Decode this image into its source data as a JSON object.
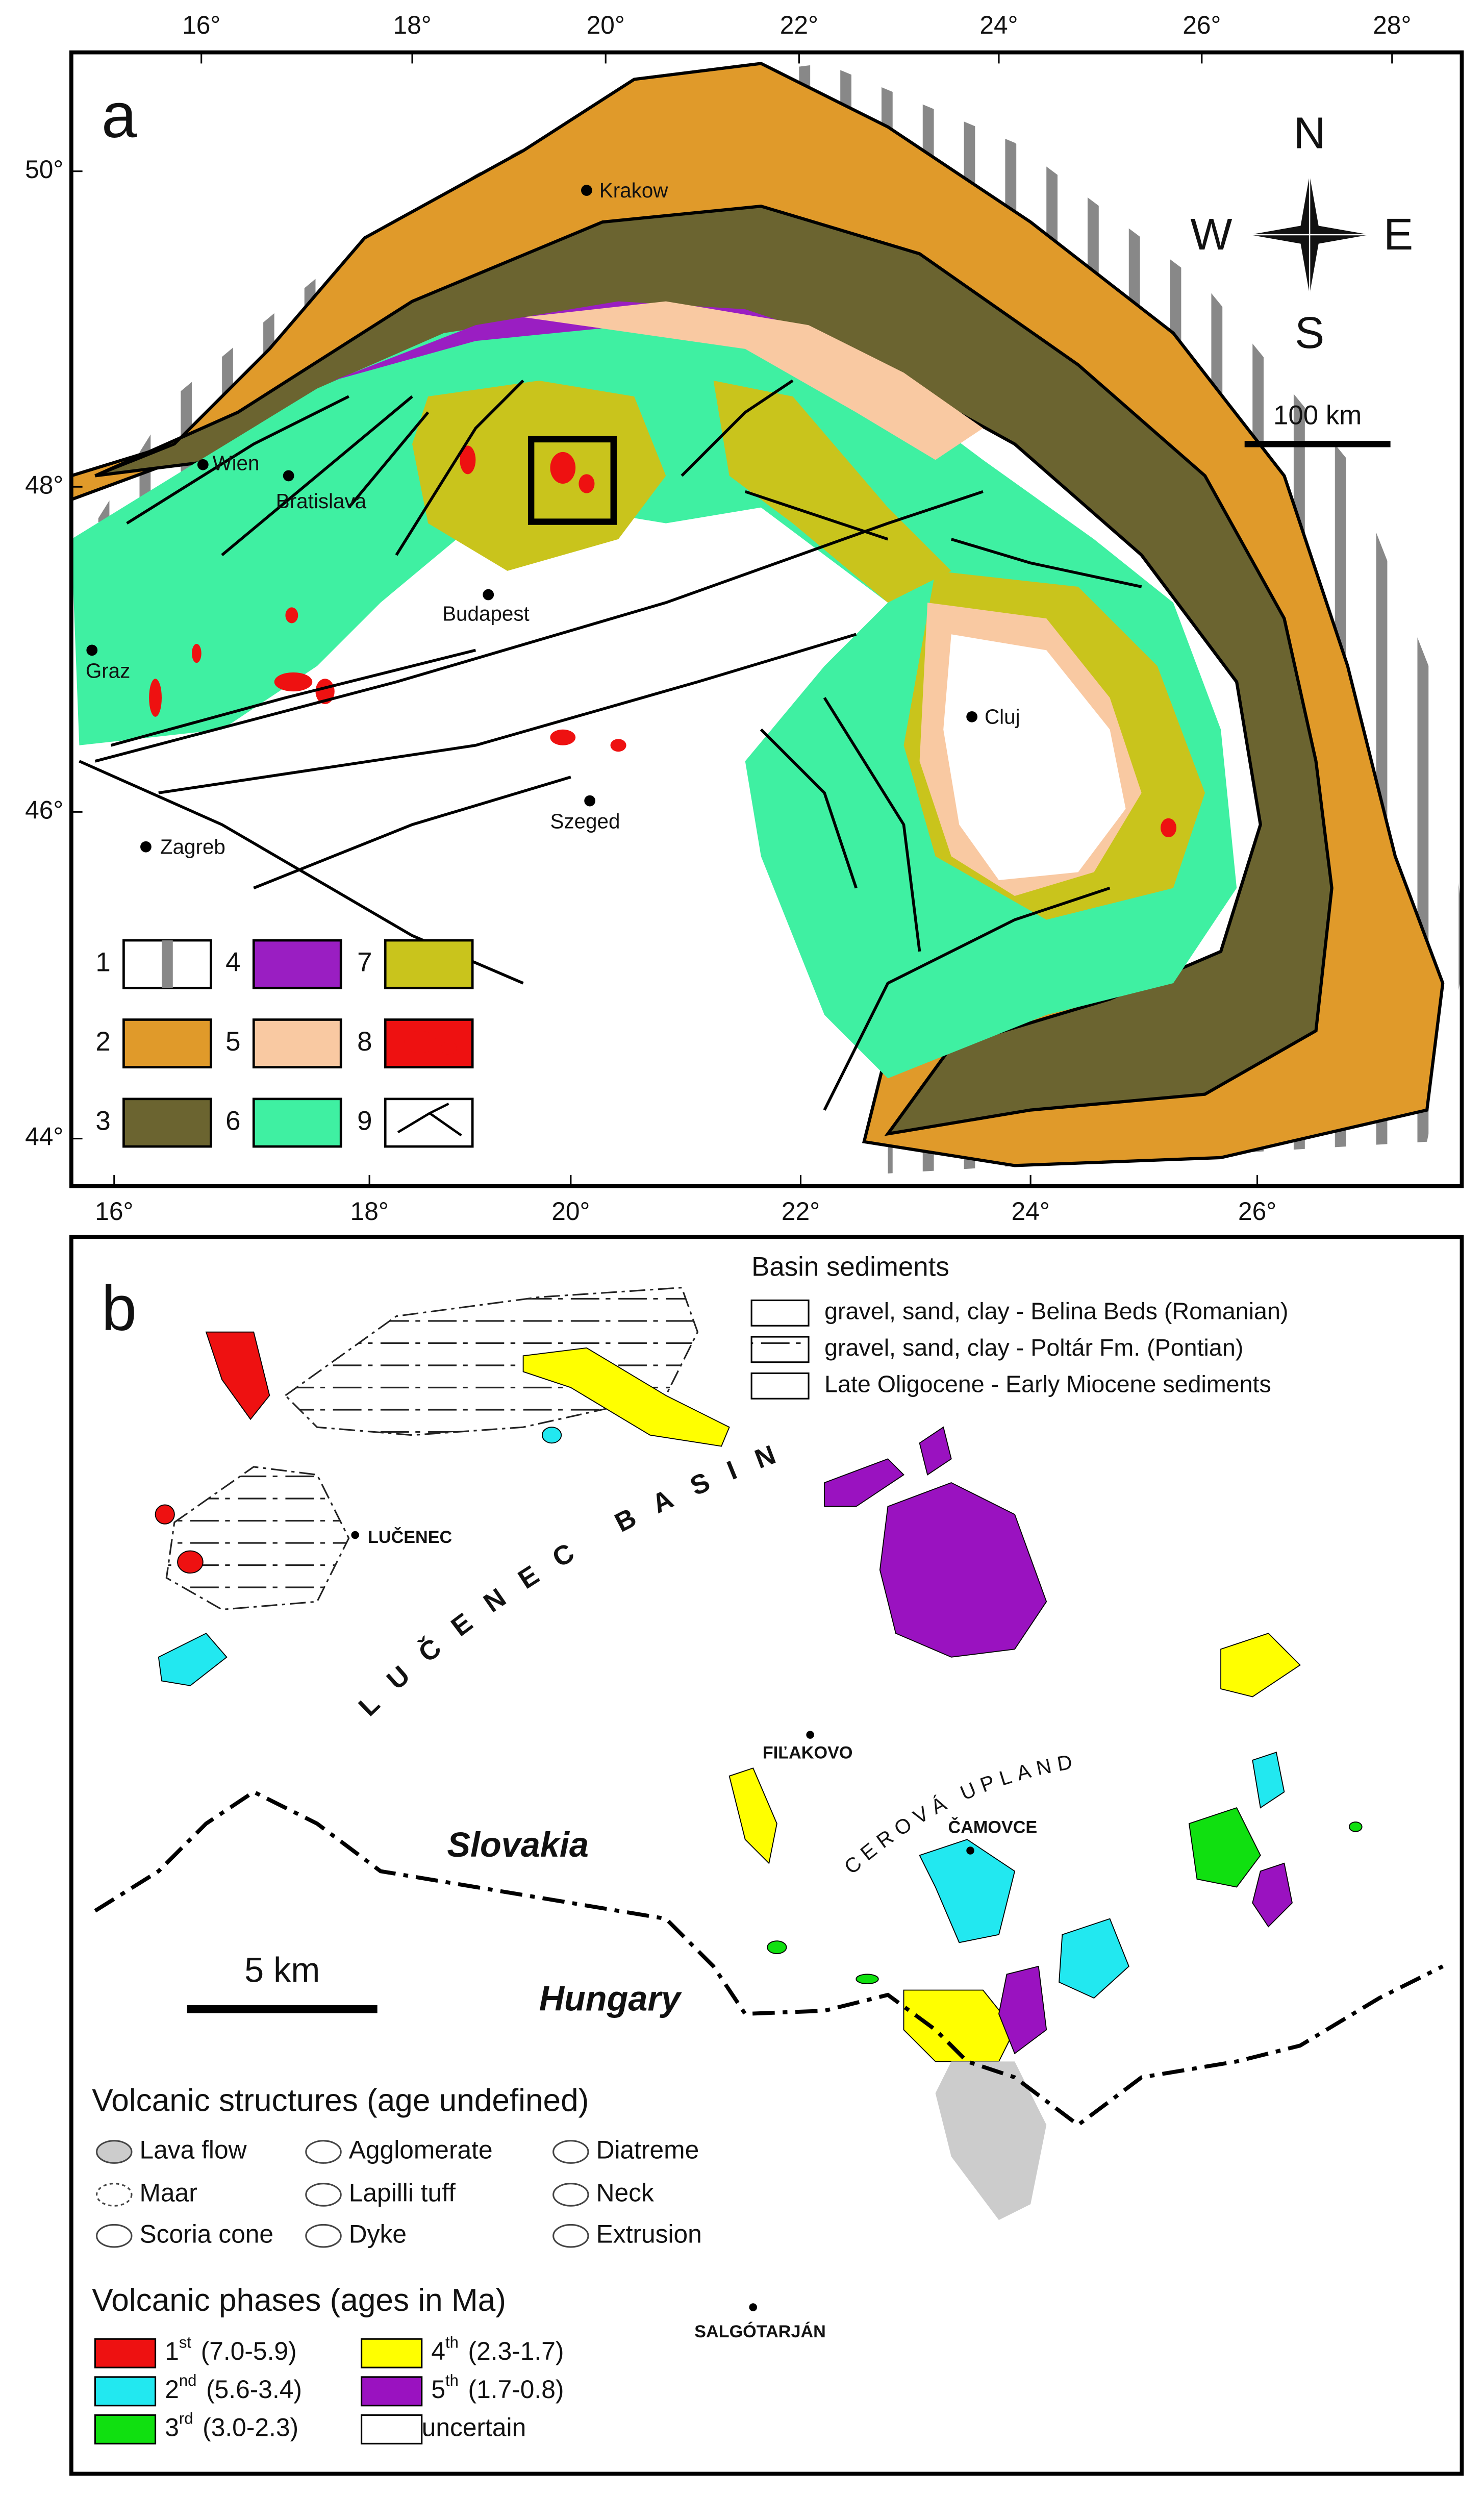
{
  "panel_a": {
    "label": "a",
    "top_ticks": [
      "16°",
      "18°",
      "20°",
      "22°",
      "24°",
      "26°",
      "28°"
    ],
    "bottom_ticks": [
      "16°",
      "18°",
      "20°",
      "22°",
      "24°",
      "26°"
    ],
    "left_ticks": [
      "50°",
      "48°",
      "46°",
      "44°"
    ],
    "compass": {
      "n": "N",
      "s": "S",
      "w": "W",
      "e": "E"
    },
    "scale_bar": "100 km",
    "cities": [
      "Krakow",
      "Wien",
      "Bratislava",
      "Budapest",
      "Graz",
      "Cluj",
      "Szeged",
      "Zagreb"
    ],
    "legend": [
      {
        "number": "1",
        "color": "#ffffff"
      },
      {
        "number": "2",
        "color": "#e09a2a"
      },
      {
        "number": "3",
        "color": "#6b6430"
      },
      {
        "number": "4",
        "color": "#9a1ec2"
      },
      {
        "number": "5",
        "color": "#f9c9a2"
      },
      {
        "number": "6",
        "color": "#3ff0a2"
      },
      {
        "number": "7",
        "color": "#c9c41c"
      },
      {
        "number": "8",
        "color": "#ee1111"
      },
      {
        "number": "9",
        "color": "#ffffff"
      }
    ]
  },
  "panel_b": {
    "label": "b",
    "sediments_title": "Basin sediments",
    "sediments": [
      "gravel, sand, clay - Belina Beds (Romanian)",
      "gravel, sand, clay - Poltár Fm. (Pontian)",
      "Late Oligocene - Early Miocene sediments"
    ],
    "basin_label": "LUČENEC BASIN",
    "upland_label": "CEROVÁ UPLAND",
    "countries": [
      "Slovakia",
      "Hungary"
    ],
    "towns": [
      "LUČENEC",
      "FIĽAKOVO",
      "ČAMOVCE",
      "SALGÓTARJÁN"
    ],
    "scale_bar": "5 km",
    "structures_title": "Volcanic structures (age undefined)",
    "structures": [
      "Lava flow",
      "Agglomerate",
      "Diatreme",
      "Maar",
      "Lapilli tuff",
      "Neck",
      "Scoria cone",
      "Dyke",
      "Extrusion"
    ],
    "phases_title": "Volcanic phases (ages in Ma)",
    "phases": [
      {
        "ordinal": "1",
        "suffix": "st",
        "range": "(7.0-5.9)",
        "color": "#ee1111"
      },
      {
        "ordinal": "4",
        "suffix": "th",
        "range": "(2.3-1.7)",
        "color": "#ffff00"
      },
      {
        "ordinal": "2",
        "suffix": "nd",
        "range": "(5.6-3.4)",
        "color": "#22e8f0"
      },
      {
        "ordinal": "5",
        "suffix": "th",
        "range": "(1.7-0.8)",
        "color": "#9a12c0"
      },
      {
        "ordinal": "3",
        "suffix": "rd",
        "range": "(3.0-2.3)",
        "color": "#10e010"
      },
      {
        "ordinal": null,
        "suffix": null,
        "range": "uncertain",
        "color": "#ffffff"
      }
    ]
  }
}
